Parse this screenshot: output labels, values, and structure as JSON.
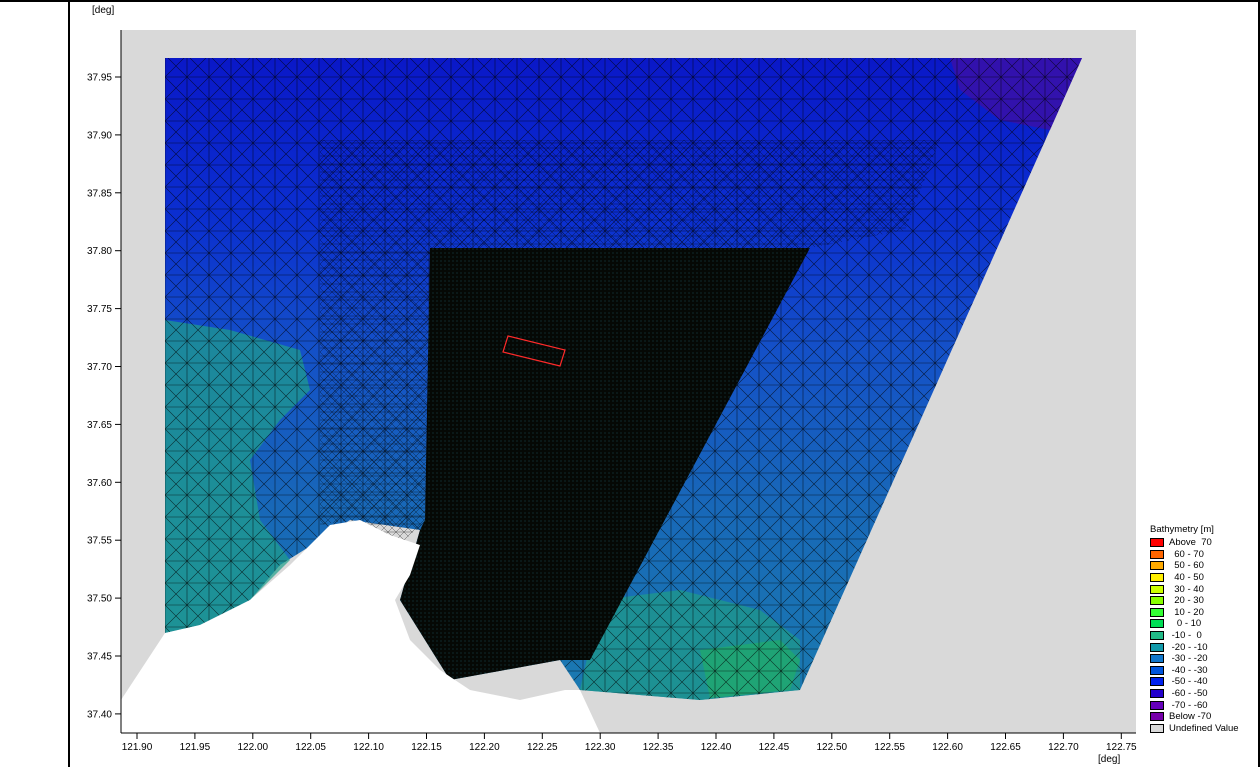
{
  "axes": {
    "y_unit": "[deg]",
    "x_unit": "[deg]",
    "y_ticks": [
      "37.95",
      "37.90",
      "37.85",
      "37.80",
      "37.75",
      "37.70",
      "37.65",
      "37.60",
      "37.55",
      "37.50",
      "37.45",
      "37.40"
    ],
    "x_ticks": [
      "121.90",
      "121.95",
      "122.00",
      "122.05",
      "122.10",
      "122.15",
      "122.20",
      "122.25",
      "122.30",
      "122.35",
      "122.40",
      "122.45",
      "122.50",
      "122.55",
      "122.60",
      "122.65",
      "122.70",
      "122.75"
    ]
  },
  "legend": {
    "title": "Bathymetry [m]",
    "items": [
      {
        "label": "Above  70",
        "color": "#ff0000"
      },
      {
        "label": "  60 - 70",
        "color": "#ff6600"
      },
      {
        "label": "  50 - 60",
        "color": "#ffaa00"
      },
      {
        "label": "  40 - 50",
        "color": "#ffee00"
      },
      {
        "label": "  30 - 40",
        "color": "#ccff00"
      },
      {
        "label": "  20 - 30",
        "color": "#88ff00"
      },
      {
        "label": "  10 - 20",
        "color": "#33ff33"
      },
      {
        "label": "   0 - 10",
        "color": "#00dd55"
      },
      {
        "label": " -10 -  0",
        "color": "#22bb88"
      },
      {
        "label": " -20 - -10",
        "color": "#1199aa"
      },
      {
        "label": " -30 - -20",
        "color": "#1177cc"
      },
      {
        "label": " -40 - -30",
        "color": "#0055dd"
      },
      {
        "label": " -50 - -40",
        "color": "#0022ee"
      },
      {
        "label": " -60 - -50",
        "color": "#2200cc"
      },
      {
        "label": " -70 - -60",
        "color": "#6600bb"
      },
      {
        "label": "Below -70",
        "color": "#7700aa"
      },
      {
        "label": "Undefined Value",
        "color": "#d9d9d9"
      }
    ]
  }
}
